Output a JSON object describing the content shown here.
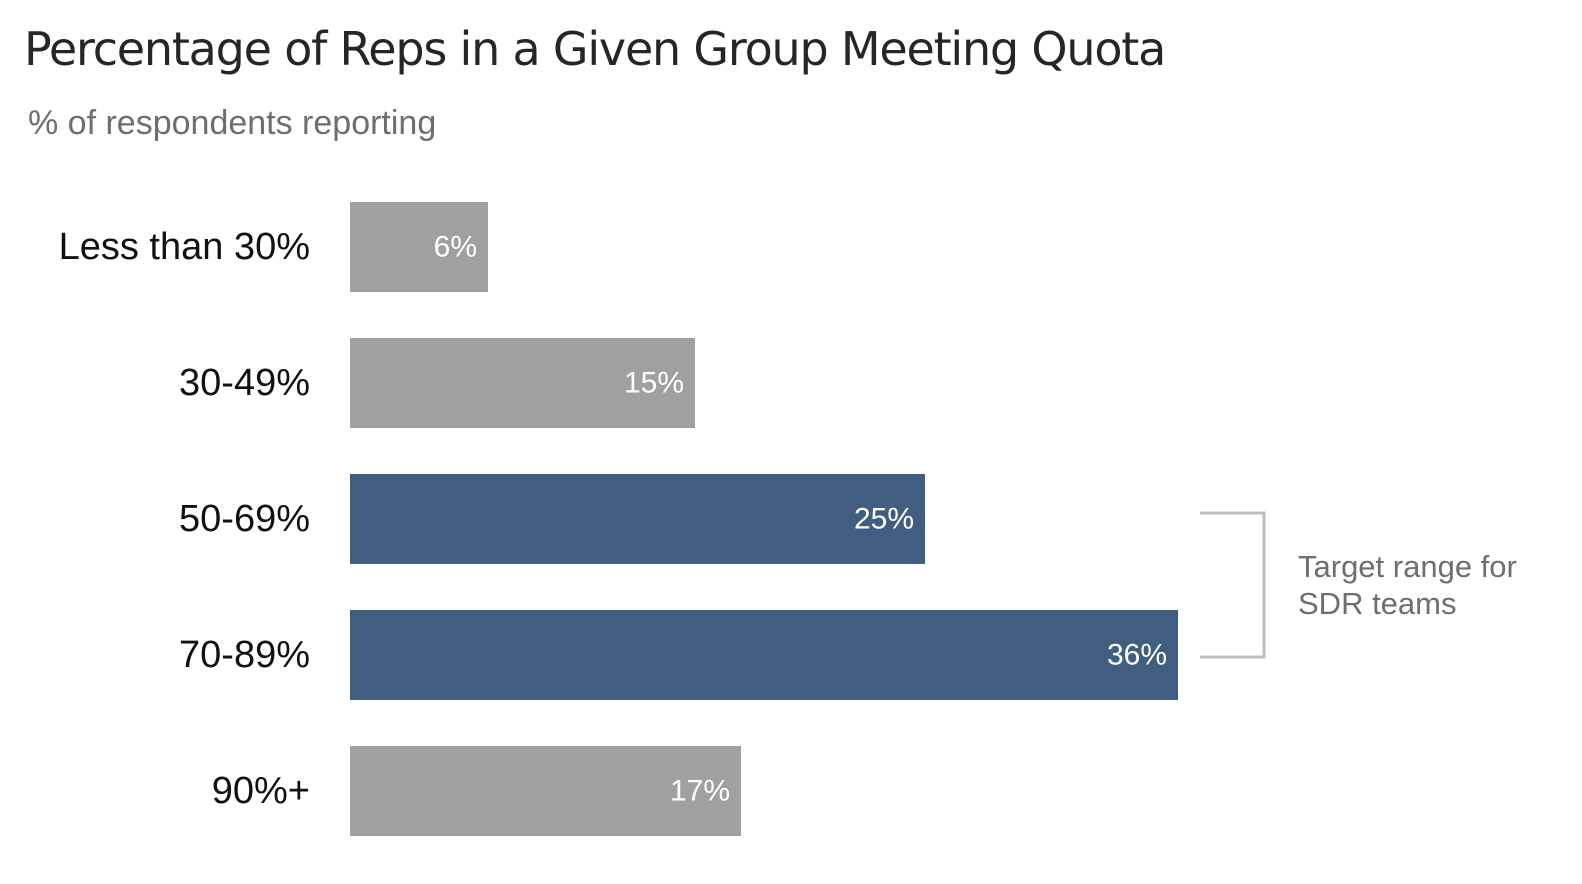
{
  "chart_data": {
    "type": "bar",
    "orientation": "horizontal",
    "title": "Percentage of Reps in a Given Group Meeting Quota",
    "subtitle": "% of respondents reporting",
    "categories": [
      "Less than 30%",
      "30-49%",
      "50-69%",
      "70-89%",
      "90%+"
    ],
    "values": [
      6,
      15,
      25,
      36,
      17
    ],
    "value_labels": [
      "6%",
      "15%",
      "25%",
      "36%",
      "17%"
    ],
    "xlim": [
      0,
      36
    ],
    "grid": false,
    "legend": "none",
    "highlighted_categories": [
      "50-69%",
      "70-89%"
    ],
    "annotation": {
      "text_lines": [
        "Target range for",
        "SDR teams"
      ],
      "spans": [
        "50-69%",
        "70-89%"
      ]
    }
  },
  "colors": {
    "default_bar": "#a0a0a0",
    "highlight_bar": "#415d80",
    "bracket": "#bdbdbd"
  }
}
